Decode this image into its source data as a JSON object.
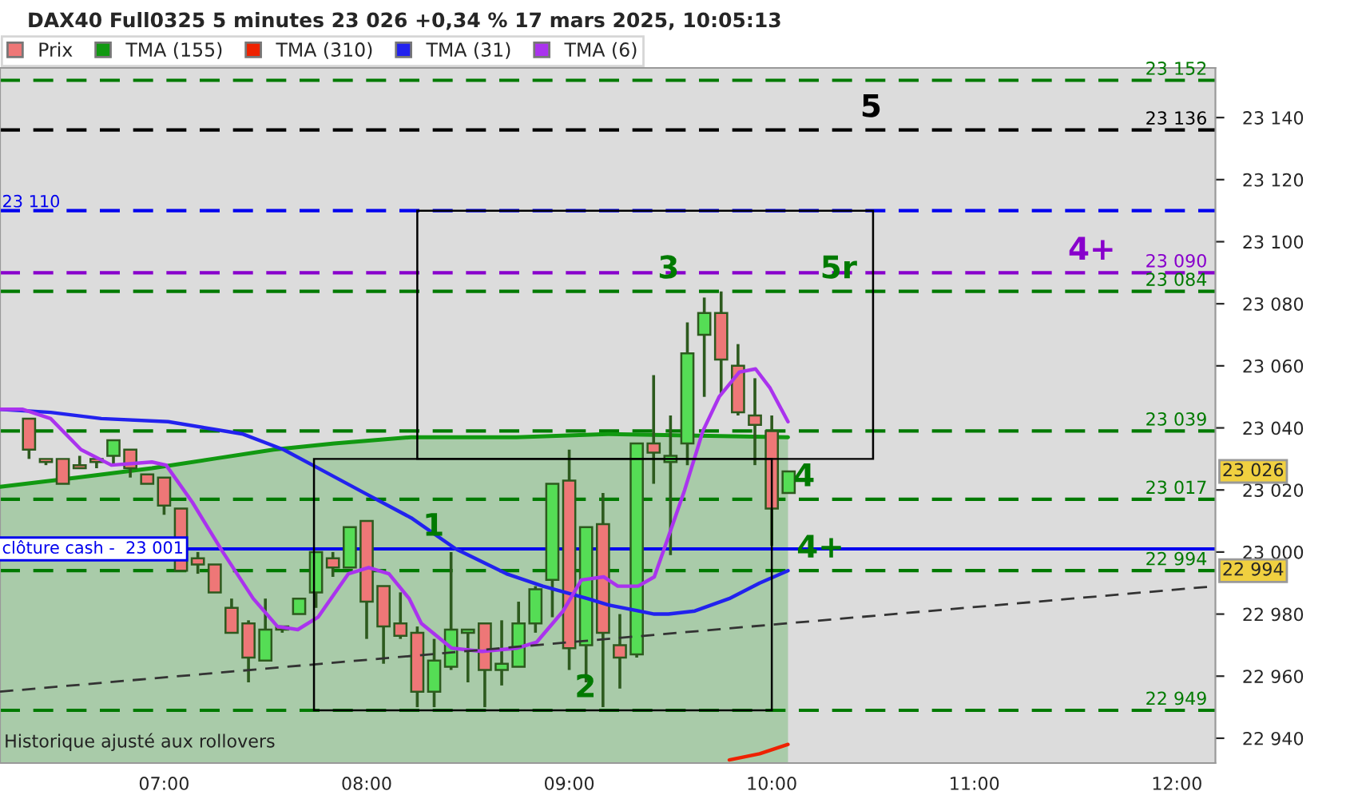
{
  "chart_data": {
    "type": "candlestick",
    "title": "DAX40 Full0325 5 minutes 23 026 +0,34 % 17 mars 2025, 10:05:13",
    "series": [
      {
        "name": "Prix",
        "type": "candlestick",
        "x": [
          6.3333,
          6.4167,
          6.5,
          6.5833,
          6.6667,
          6.75,
          6.8333,
          6.9167,
          7,
          7.0833,
          7.1667,
          7.25,
          7.3333,
          7.4167,
          7.5,
          7.5833,
          7.6667,
          7.75,
          7.8333,
          7.9167,
          8,
          8.0833,
          8.1667,
          8.25,
          8.3333,
          8.4167,
          8.5,
          8.5833,
          8.6667,
          8.75,
          8.8333,
          8.9167,
          9,
          9.0833,
          9.1667,
          9.25,
          9.3333,
          9.4167,
          9.5,
          9.5833,
          9.6667,
          9.75,
          9.8333,
          9.9167,
          10,
          10.0833
        ],
        "ohlc": [
          [
            23043,
            23043,
            23030,
            23033
          ],
          [
            23030,
            23030,
            23028,
            23029
          ],
          [
            23030,
            23030,
            23022,
            23022
          ],
          [
            23028,
            23031,
            23027,
            23027
          ],
          [
            23030,
            23030,
            23027,
            23029
          ],
          [
            23031,
            23036,
            23028,
            23036
          ],
          [
            23033,
            23033,
            23024,
            23027
          ],
          [
            23025,
            23025,
            23022,
            23022
          ],
          [
            23024,
            23024,
            23012,
            23015
          ],
          [
            23014,
            23014,
            22994,
            22994
          ],
          [
            22998,
            23000,
            22993,
            22996
          ],
          [
            22996,
            22996,
            22987,
            22987
          ],
          [
            22982,
            22985,
            22974,
            22974
          ],
          [
            22977,
            22978,
            22958,
            22966
          ],
          [
            22965,
            22985,
            22965,
            22975
          ],
          [
            22976,
            22976,
            22974,
            22975
          ],
          [
            22980,
            22985,
            22980,
            22985
          ],
          [
            22987,
            23000,
            22982,
            23000
          ],
          [
            22998,
            23000,
            22992,
            22995
          ],
          [
            22995,
            23008,
            22995,
            23008
          ],
          [
            23010,
            23010,
            22972,
            22984
          ],
          [
            22989,
            22989,
            22964,
            22976
          ],
          [
            22977,
            22987,
            22972,
            22973
          ],
          [
            22974,
            22976,
            22950,
            22955
          ],
          [
            22955,
            22972,
            22950,
            22965
          ],
          [
            22963,
            23000,
            22962,
            22975
          ],
          [
            22974,
            22975,
            22958,
            22975
          ],
          [
            22977,
            22977,
            22950,
            22962
          ],
          [
            22962,
            22978,
            22957,
            22964
          ],
          [
            22963,
            22984,
            22963,
            22977
          ],
          [
            22977,
            22989,
            22974,
            22988
          ],
          [
            22991,
            23022,
            22979,
            23022
          ],
          [
            23023,
            23033,
            22962,
            22969
          ],
          [
            22970,
            23008,
            22958,
            23008
          ],
          [
            23009,
            23019,
            22950,
            22974
          ],
          [
            22970,
            22980,
            22956,
            22966
          ],
          [
            22967,
            23035,
            22966,
            23035
          ],
          [
            23035,
            23057,
            23022,
            23032
          ],
          [
            23029,
            23044,
            22999,
            23031
          ],
          [
            23035,
            23074,
            23028,
            23064
          ],
          [
            23070,
            23082,
            23050,
            23077
          ],
          [
            23077,
            23084,
            23051,
            23062
          ],
          [
            23060,
            23067,
            23044,
            23045
          ],
          [
            23044,
            23056,
            23028,
            23041
          ],
          [
            23039,
            23044,
            23002,
            23014
          ],
          [
            23019,
            23026,
            23019,
            23026
          ]
        ],
        "colors": [
          "#ee7777",
          "#ee7777",
          "#ee7777",
          "#ee7777",
          "#ee7777",
          "#55dd55",
          "#ee7777",
          "#ee7777",
          "#ee7777",
          "#ee7777",
          "#ee7777",
          "#ee7777",
          "#ee7777",
          "#ee7777",
          "#55dd55",
          "#ee7777",
          "#55dd55",
          "#55dd55",
          "#ee7777",
          "#55dd55",
          "#ee7777",
          "#ee7777",
          "#ee7777",
          "#ee7777",
          "#55dd55",
          "#55dd55",
          "#55dd55",
          "#ee7777",
          "#55dd55",
          "#55dd55",
          "#55dd55",
          "#55dd55",
          "#ee7777",
          "#55dd55",
          "#ee7777",
          "#ee7777",
          "#55dd55",
          "#ee7777",
          "#55dd55",
          "#55dd55",
          "#55dd55",
          "#ee7777",
          "#ee7777",
          "#ee7777",
          "#ee7777",
          "#55dd55"
        ]
      },
      {
        "name": "TMA (155)",
        "type": "area",
        "color": "#119911",
        "x": [
          6.19,
          6.57,
          6.94,
          7.24,
          7.54,
          7.84,
          8.22,
          8.74,
          9.19,
          10.08
        ],
        "values": [
          23021,
          23024,
          23027,
          23030,
          23033,
          23035,
          23037,
          23037,
          23038,
          23037
        ]
      },
      {
        "name": "TMA (310)",
        "type": "line",
        "color": "#ee2200",
        "x": [
          9.79,
          9.94,
          10.08
        ],
        "values": [
          22933,
          22935,
          22938
        ]
      },
      {
        "name": "TMA (31)",
        "type": "line",
        "color": "#2222ee",
        "x": [
          6.19,
          6.44,
          6.69,
          7.02,
          7.39,
          7.59,
          7.79,
          7.99,
          8.22,
          8.44,
          8.69,
          8.87,
          9.09,
          9.19,
          9.42,
          9.49,
          9.62,
          9.79,
          9.94,
          10.08
        ],
        "values": [
          23046,
          23045,
          23043,
          23042,
          23038,
          23033,
          23026,
          23019,
          23011,
          23001,
          22993,
          22989,
          22985,
          22983,
          22980,
          22980,
          22981,
          22985,
          22990,
          22994
        ]
      },
      {
        "name": "TMA (6)",
        "type": "line",
        "color": "#aa33ee",
        "x": [
          6.19,
          6.3,
          6.44,
          6.59,
          6.74,
          6.94,
          7.01,
          7.14,
          7.29,
          7.44,
          7.56,
          7.66,
          7.76,
          7.91,
          8.01,
          8.11,
          8.21,
          8.27,
          8.42,
          8.57,
          8.74,
          8.84,
          8.97,
          9.06,
          9.17,
          9.24,
          9.34,
          9.42,
          9.49,
          9.57,
          9.66,
          9.74,
          9.84,
          9.92,
          9.99,
          10.08
        ],
        "values": [
          23046,
          23046,
          23043,
          23033,
          23028,
          23029,
          23028,
          23016,
          23000,
          22985,
          22976,
          22975,
          22979,
          22993,
          22995,
          22993,
          22985,
          22977,
          22969,
          22968,
          22969,
          22971,
          22981,
          22991,
          22992,
          22989,
          22989,
          22992,
          23005,
          23020,
          23039,
          23050,
          23058,
          23059,
          23053,
          23042
        ]
      },
      {
        "type": "line",
        "color": "#333333",
        "line_style": "dashed",
        "x": [
          6.19,
          12.19
        ],
        "values": [
          22955,
          22989
        ]
      }
    ],
    "xlim": [
      6.19,
      12.19
    ],
    "xticks": [
      {
        "value": 7,
        "label": "07:00"
      },
      {
        "value": 8,
        "label": "08:00"
      },
      {
        "value": 9,
        "label": "09:00"
      },
      {
        "value": 10,
        "label": "10:00"
      },
      {
        "value": 11,
        "label": "11:00"
      },
      {
        "value": 12,
        "label": "12:00"
      }
    ],
    "ylim": [
      22932,
      23156
    ],
    "yticks": [
      {
        "value": 22940,
        "label": "22 940"
      },
      {
        "value": 22960,
        "label": "22 960"
      },
      {
        "value": 22980,
        "label": "22 980"
      },
      {
        "value": 23000,
        "label": "23 000"
      },
      {
        "value": 23020,
        "label": "23 020"
      },
      {
        "value": 23040,
        "label": "23 040"
      },
      {
        "value": 23060,
        "label": "23 060"
      },
      {
        "value": 23080,
        "label": "23 080"
      },
      {
        "value": 23100,
        "label": "23 100"
      },
      {
        "value": 23120,
        "label": "23 120"
      },
      {
        "value": 23140,
        "label": "23 140"
      }
    ],
    "ref_lines": [
      {
        "axis": "y",
        "value": 23152,
        "label": "23 152",
        "color": "#007a00",
        "line_style": "dashed"
      },
      {
        "axis": "y",
        "value": 23136,
        "label": "23 136",
        "color": "#000000",
        "line_style": "dashed"
      },
      {
        "axis": "y",
        "value": 23110,
        "label": "23 110",
        "color": "#0000ee",
        "line_style": "dashed"
      },
      {
        "axis": "y",
        "value": 23090,
        "label": "23 090",
        "color": "#8800cc",
        "line_style": "dashed"
      },
      {
        "axis": "y",
        "value": 23084,
        "label": "23 084",
        "color": "#007a00",
        "line_style": "dashed"
      },
      {
        "axis": "y",
        "value": 23039,
        "label": "23 039",
        "color": "#007a00",
        "line_style": "dashed"
      },
      {
        "axis": "y",
        "value": 23017,
        "label": "23 017",
        "color": "#007a00",
        "line_style": "dashed"
      },
      {
        "axis": "y",
        "value": 23001,
        "label": "clôture cash -  23 001",
        "color": "#0000ee",
        "line_style": "solid"
      },
      {
        "axis": "y",
        "value": 22994,
        "label": "22 994",
        "color": "#007a00",
        "line_style": "dashed"
      },
      {
        "axis": "y",
        "value": 22949,
        "label": "22 949",
        "color": "#007a00",
        "line_style": "dashed"
      }
    ],
    "annotations": [
      {
        "text": "5",
        "x": 10.49,
        "y": 23136
      },
      {
        "text": "4+",
        "x": 11.58,
        "y": 23090
      },
      {
        "text": "3",
        "x": 9.49,
        "y": 23084
      },
      {
        "text": "5r",
        "x": 10.33,
        "y": 23084
      },
      {
        "text": "4",
        "x": 10.16,
        "y": 23017
      },
      {
        "text": "1",
        "x": 8.33,
        "y": 23001
      },
      {
        "text": "4+",
        "x": 10.24,
        "y": 22994
      },
      {
        "text": "2",
        "x": 9.08,
        "y": 22949
      },
      {
        "text": "23 026",
        "y": 23026
      },
      {
        "text": "22 994",
        "y": 22994
      },
      "Historique ajusté aux rollovers"
    ],
    "legend": "top left",
    "grid": false
  }
}
